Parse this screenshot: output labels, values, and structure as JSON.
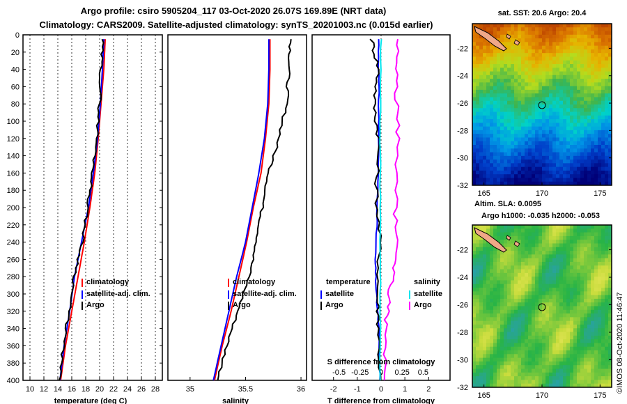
{
  "title_line1": "Argo profile: csiro 5905204_117 03-Oct-2020 26.07S 169.89E (NRT data)",
  "title_line2": "Climatology: CARS2009. Satellite-adjusted climatology: synTS_20201003.nc (0.015d earlier)",
  "credit": "©IMOS 08-Oct-2020 11:46:47",
  "colors": {
    "climatology": "#ff0000",
    "satellite": "#0000ff",
    "argo": "#000000",
    "s_satellite": "#00e5ee",
    "s_argo": "#ff00ff"
  },
  "chart_data": [
    {
      "id": "temperature",
      "type": "line",
      "xlabel": "temperature (deg C)",
      "ylabel": "",
      "xlim": [
        9,
        29
      ],
      "ylim": [
        400,
        0
      ],
      "xticks": [
        "10",
        "12",
        "14",
        "16",
        "18",
        "20",
        "22",
        "24",
        "26",
        "28"
      ],
      "yticks": [
        "0",
        "20",
        "40",
        "60",
        "80",
        "100",
        "120",
        "140",
        "160",
        "180",
        "200",
        "220",
        "240",
        "260",
        "280",
        "300",
        "320",
        "340",
        "360",
        "380",
        "400"
      ],
      "legend": [
        "climatology",
        "satellite-adj. clim.",
        "Argo"
      ],
      "series": [
        {
          "name": "climatology",
          "depth": [
            5,
            40,
            80,
            120,
            160,
            200,
            240,
            280,
            320,
            360,
            400
          ],
          "values": [
            20.8,
            20.6,
            20.2,
            19.8,
            19.3,
            18.6,
            17.8,
            16.9,
            16.0,
            15.1,
            14.4
          ]
        },
        {
          "name": "satellite-adj. clim.",
          "depth": [
            5,
            40,
            80,
            120,
            160,
            200,
            240,
            280,
            320,
            360,
            400
          ],
          "values": [
            20.6,
            20.4,
            20.1,
            19.7,
            19.1,
            18.4,
            17.4,
            16.4,
            15.7,
            14.9,
            14.3
          ]
        },
        {
          "name": "Argo",
          "depth": [
            5,
            40,
            80,
            120,
            160,
            200,
            240,
            280,
            320,
            360,
            400
          ],
          "values": [
            20.4,
            20.2,
            20.0,
            19.6,
            19.0,
            18.3,
            17.5,
            16.4,
            15.6,
            14.8,
            14.2
          ]
        }
      ]
    },
    {
      "id": "salinity",
      "type": "line",
      "xlabel": "salinity",
      "ylabel": "",
      "xlim": [
        34.8,
        36.05
      ],
      "ylim": [
        400,
        0
      ],
      "xticks": [
        "35",
        "35.5",
        "36"
      ],
      "legend": [
        "climatology",
        "satellite-adj. clim.",
        "Argo"
      ],
      "series": [
        {
          "name": "climatology",
          "depth": [
            5,
            40,
            80,
            120,
            160,
            200,
            240,
            280,
            320,
            360,
            400
          ],
          "values": [
            35.72,
            35.72,
            35.71,
            35.68,
            35.64,
            35.57,
            35.51,
            35.44,
            35.37,
            35.29,
            35.22
          ]
        },
        {
          "name": "satellite-adj. clim.",
          "depth": [
            5,
            40,
            80,
            120,
            160,
            200,
            240,
            280,
            320,
            360,
            400
          ],
          "values": [
            35.71,
            35.71,
            35.7,
            35.67,
            35.62,
            35.56,
            35.5,
            35.42,
            35.35,
            35.28,
            35.21
          ]
        },
        {
          "name": "Argo",
          "depth": [
            5,
            40,
            80,
            120,
            160,
            200,
            240,
            280,
            320,
            360,
            400
          ],
          "values": [
            35.91,
            35.89,
            35.87,
            35.8,
            35.71,
            35.65,
            35.6,
            35.53,
            35.43,
            35.33,
            35.25
          ]
        }
      ]
    },
    {
      "id": "differences",
      "type": "line",
      "xlabel": "T difference from climatology",
      "x2label": "S difference from climatology",
      "xlim": [
        -2.9,
        2.9
      ],
      "ylim": [
        400,
        0
      ],
      "xticks": [
        "-2",
        "-1",
        "0",
        "1",
        "2"
      ],
      "x2ticks": [
        "-0.5",
        "-0.25",
        "0",
        "0.25",
        "0.5"
      ],
      "legend_temperature_title": "temperature",
      "legend_salinity_title": "salinity",
      "legend_temperature": [
        "satellite",
        "Argo"
      ],
      "legend_salinity": [
        "satellite",
        "Argo"
      ],
      "series": [
        {
          "name": "temperature satellite",
          "depth": [
            5,
            60,
            120,
            200,
            260,
            300,
            340,
            400
          ],
          "values": [
            -0.1,
            -0.1,
            -0.1,
            -0.15,
            -0.25,
            -0.2,
            -0.1,
            -0.05
          ]
        },
        {
          "name": "temperature Argo",
          "depth": [
            5,
            40,
            80,
            120,
            180,
            240,
            300,
            340,
            400
          ],
          "values": [
            -0.4,
            -0.1,
            -0.3,
            -0.1,
            -0.2,
            -0.05,
            -0.15,
            -0.1,
            -0.05
          ]
        },
        {
          "name": "salinity satellite",
          "depth": [
            5,
            100,
            200,
            300,
            400
          ],
          "values": [
            0,
            -0.01,
            -0.01,
            -0.01,
            -0.01
          ]
        },
        {
          "name": "salinity Argo",
          "depth": [
            5,
            60,
            120,
            200,
            260,
            300,
            340,
            400
          ],
          "values": [
            0.2,
            0.18,
            0.2,
            0.17,
            0.18,
            0.1,
            0.05,
            0.04
          ]
        }
      ]
    },
    {
      "id": "sst_map",
      "type": "heatmap",
      "title": "sat. SST: 20.6 Argo: 20.4",
      "xticks": [
        "165",
        "170",
        "175"
      ],
      "yticks": [
        "-22",
        "-24",
        "-26",
        "-28",
        "-30",
        "-32"
      ],
      "xlim": [
        164,
        176
      ],
      "ylim": [
        -32,
        -20.2
      ],
      "marker": {
        "lon": 169.89,
        "lat": -26.07
      }
    },
    {
      "id": "sla_map",
      "type": "heatmap",
      "title": "Altim. SLA: 0.0095",
      "subtitle": "Argo h1000: -0.035 h2000: -0.053",
      "xticks": [
        "165",
        "170",
        "175"
      ],
      "yticks": [
        "-22",
        "-24",
        "-26",
        "-28",
        "-30",
        "-32"
      ],
      "xlim": [
        164,
        176
      ],
      "ylim": [
        -32,
        -20.2
      ],
      "marker": {
        "lon": 169.89,
        "lat": -26.07
      }
    }
  ]
}
